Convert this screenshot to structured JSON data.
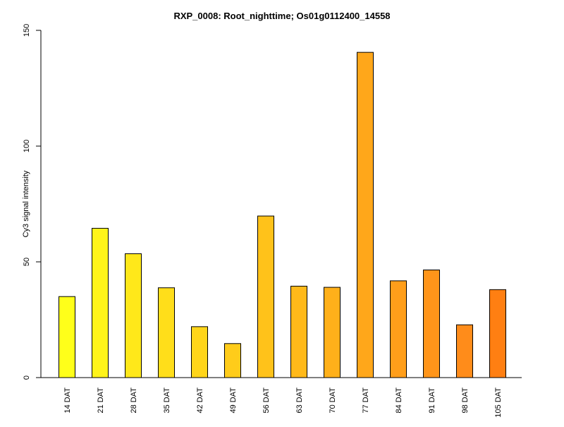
{
  "chart_data": {
    "type": "bar",
    "title": "RXP_0008: Root_nighttime; Os01g0112400_14558",
    "xlabel": "",
    "ylabel": "Cy3 signal intensity",
    "ylim": [
      0,
      150
    ],
    "yticks": [
      0,
      50,
      100,
      150
    ],
    "categories": [
      "14 DAT",
      "21 DAT",
      "28 DAT",
      "35 DAT",
      "42 DAT",
      "49 DAT",
      "56 DAT",
      "63 DAT",
      "70 DAT",
      "77 DAT",
      "84 DAT",
      "91 DAT",
      "98 DAT",
      "105 DAT"
    ],
    "values": [
      35,
      64.5,
      53.5,
      38.8,
      22,
      14.7,
      69.8,
      39.5,
      39,
      140.5,
      41.8,
      46.5,
      22.8,
      38
    ],
    "colors": [
      "#FFFF1A",
      "#FFF41A",
      "#FFE81A",
      "#FFDE1A",
      "#FFD51A",
      "#FFCC1A",
      "#FFC21A",
      "#FFB91A",
      "#FFB01A",
      "#FFA71A",
      "#FF9E1A",
      "#FF951A",
      "#FF8C1A",
      "#FF7F12"
    ],
    "grid": false,
    "legend": "none"
  }
}
